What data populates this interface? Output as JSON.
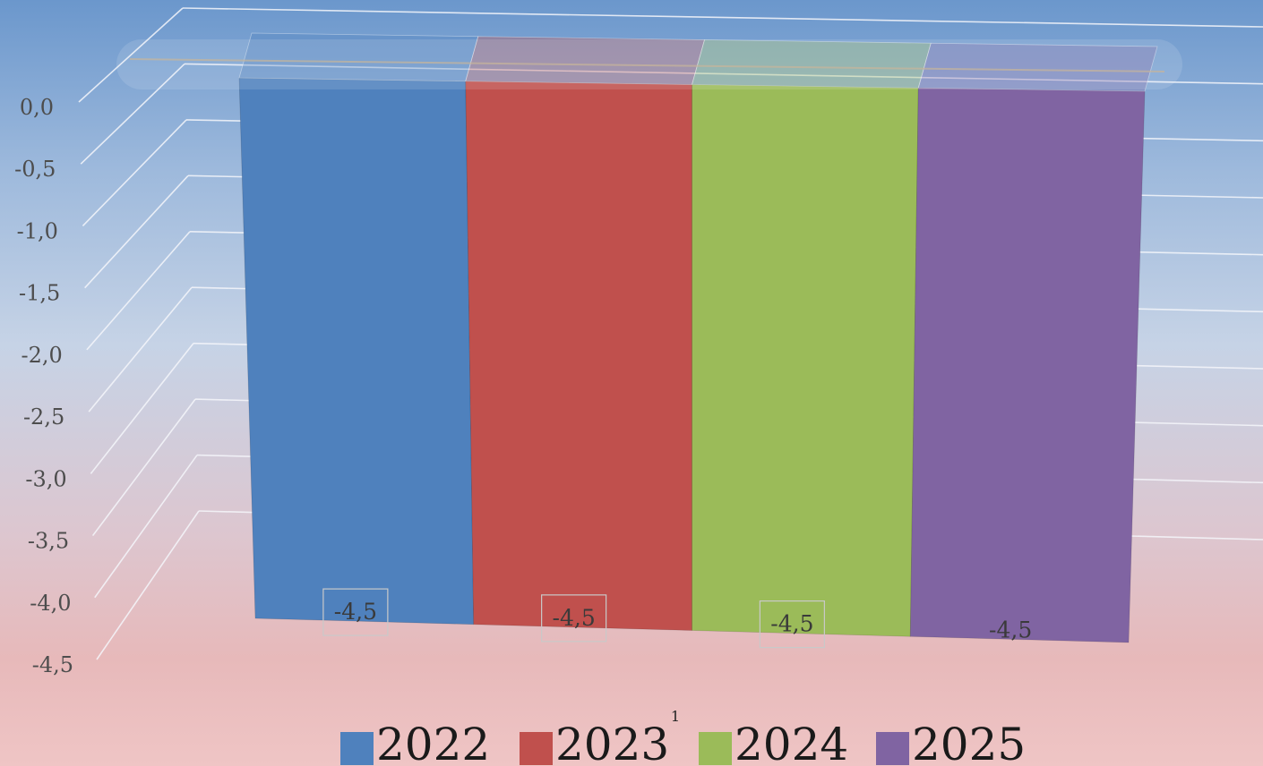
{
  "chart_data": {
    "type": "bar",
    "categories": [
      "1"
    ],
    "series": [
      {
        "name": "2022",
        "values": [
          -4.5
        ],
        "color": "#4f81bd",
        "value_label": "-4,5"
      },
      {
        "name": "2023",
        "values": [
          -4.5
        ],
        "color": "#c0504d",
        "value_label": "-4,5"
      },
      {
        "name": "2024",
        "values": [
          -4.5
        ],
        "color": "#9bbb59",
        "value_label": "-4,5"
      },
      {
        "name": "2025",
        "values": [
          -4.5
        ],
        "color": "#8064a2",
        "value_label": "-4,5"
      }
    ],
    "ylim": [
      -4.5,
      0
    ],
    "yticks": [
      0,
      -0.5,
      -1,
      -1.5,
      -2,
      -2.5,
      -3,
      -3.5,
      -4,
      -4.5
    ],
    "ytick_labels": [
      "0,0",
      "-0,5",
      "-1,0",
      "-1,5",
      "-2,0",
      "-2,5",
      "-3,0",
      "-3,5",
      "-4,0",
      "-4,5"
    ],
    "grid": true,
    "legend": "bottom",
    "style": "3d",
    "title": "",
    "xlabel": "",
    "ylabel": ""
  },
  "legend": {
    "items": [
      {
        "label": "2022",
        "color": "#4f81bd"
      },
      {
        "label": "2023",
        "color": "#c0504d"
      },
      {
        "label": "2024",
        "color": "#9bbb59"
      },
      {
        "label": "2025",
        "color": "#8064a2"
      }
    ]
  }
}
